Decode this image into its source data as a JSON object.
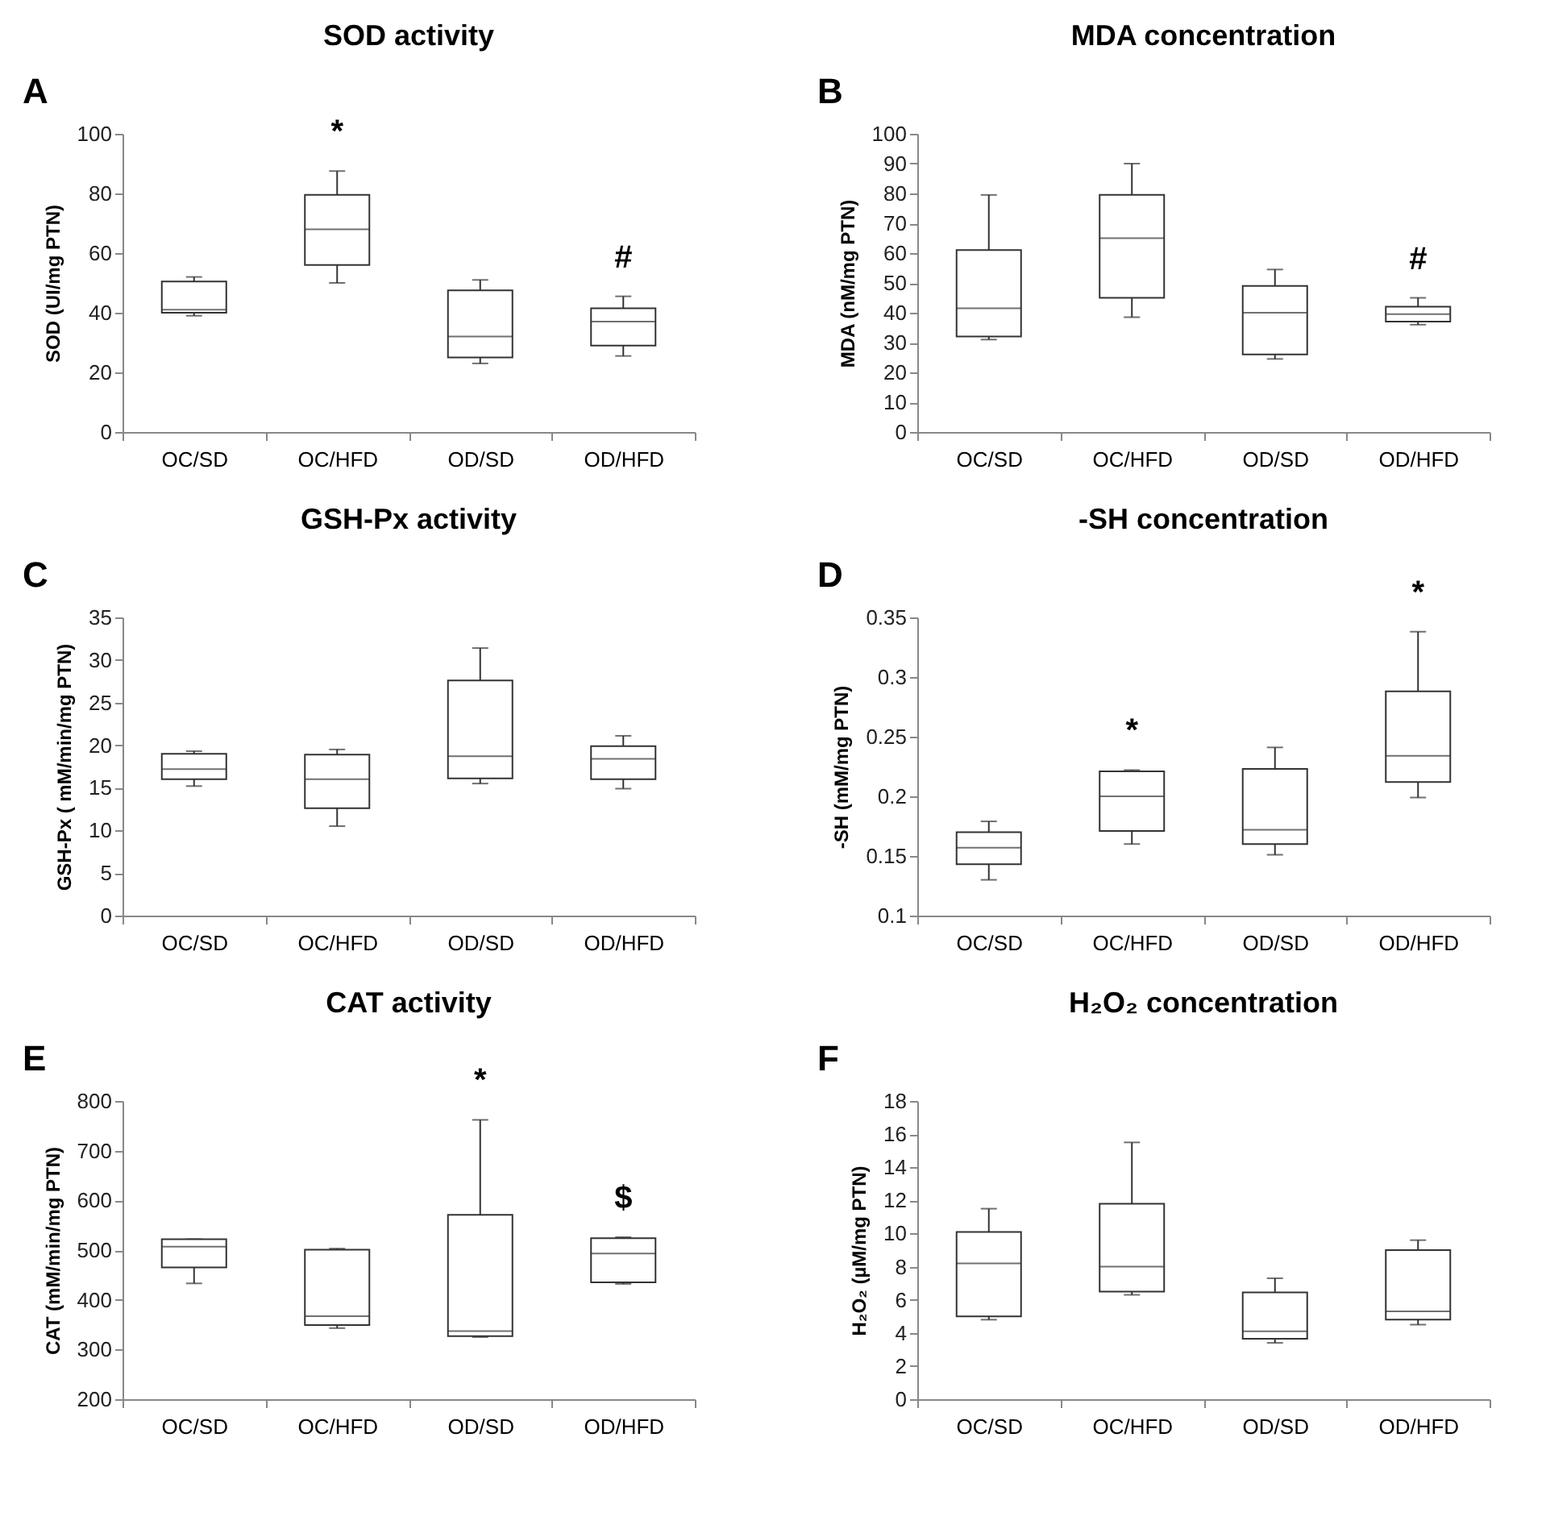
{
  "chart_data": [
    {
      "type": "box",
      "title": "SOD activity",
      "ylabel": "SOD (UI/mg PTN)",
      "categories": [
        "OC/SD",
        "OC/HFD",
        "OD/SD",
        "OD/HFD"
      ],
      "ylim": [
        0,
        100
      ],
      "yticks": [
        0,
        20,
        40,
        60,
        80,
        100
      ],
      "boxes": [
        {
          "low": 39,
          "q1": 40,
          "median": 41,
          "q3": 50.5,
          "high": 52
        },
        {
          "low": 50,
          "q1": 56,
          "median": 68,
          "q3": 79.5,
          "high": 87.5
        },
        {
          "low": 23,
          "q1": 25,
          "median": 32,
          "q3": 47.5,
          "high": 51
        },
        {
          "low": 25.5,
          "q1": 29,
          "median": 37,
          "q3": 41.5,
          "high": 45.5
        }
      ],
      "annotations": [
        "A",
        {
          "text": "*",
          "x": "OC/HFD",
          "y": 87.5
        },
        {
          "text": "#",
          "x": "OD/HFD",
          "y": 45.5
        }
      ]
    },
    {
      "type": "box",
      "title": "MDA concentration",
      "ylabel": "MDA (nM/mg PTN)",
      "categories": [
        "OC/SD",
        "OC/HFD",
        "OD/SD",
        "OD/HFD"
      ],
      "ylim": [
        0,
        100
      ],
      "yticks": [
        0,
        10,
        20,
        30,
        40,
        50,
        60,
        70,
        80,
        90,
        100
      ],
      "boxes": [
        {
          "low": 31,
          "q1": 32,
          "median": 41.5,
          "q3": 61,
          "high": 79.5
        },
        {
          "low": 38.5,
          "q1": 45,
          "median": 65,
          "q3": 79.5,
          "high": 90
        },
        {
          "low": 24.5,
          "q1": 26,
          "median": 40,
          "q3": 49,
          "high": 54.5
        },
        {
          "low": 36,
          "q1": 37,
          "median": 39.5,
          "q3": 42,
          "high": 45
        }
      ],
      "annotations": [
        "B",
        {
          "text": "#",
          "x": "OD/HFD",
          "y": 45
        }
      ]
    },
    {
      "type": "box",
      "title": "GSH-Px activity",
      "ylabel": "GSH-Px ( mM/min/mg PTN)",
      "categories": [
        "OC/SD",
        "OC/HFD",
        "OD/SD",
        "OD/HFD"
      ],
      "ylim": [
        0,
        35
      ],
      "yticks": [
        0,
        5,
        10,
        15,
        20,
        25,
        30,
        35
      ],
      "boxes": [
        {
          "low": 15.2,
          "q1": 16,
          "median": 17.2,
          "q3": 19,
          "high": 19.3
        },
        {
          "low": 10.5,
          "q1": 12.6,
          "median": 16,
          "q3": 18.9,
          "high": 19.5
        },
        {
          "low": 15.5,
          "q1": 16.1,
          "median": 18.7,
          "q3": 27.6,
          "high": 31.4
        },
        {
          "low": 14.9,
          "q1": 16,
          "median": 18.4,
          "q3": 19.9,
          "high": 21.1
        }
      ],
      "annotations": [
        "C"
      ]
    },
    {
      "type": "box",
      "title": "-SH concentration",
      "ylabel": "-SH (mM/mg PTN)",
      "categories": [
        "OC/SD",
        "OC/HFD",
        "OD/SD",
        "OD/HFD"
      ],
      "ylim": [
        0.1,
        0.35
      ],
      "yticks": [
        0.1,
        0.15,
        0.2,
        0.25,
        0.3,
        0.35
      ],
      "boxes": [
        {
          "low": 0.13,
          "q1": 0.143,
          "median": 0.157,
          "q3": 0.17,
          "high": 0.179
        },
        {
          "low": 0.16,
          "q1": 0.171,
          "median": 0.2,
          "q3": 0.221,
          "high": 0.222
        },
        {
          "low": 0.151,
          "q1": 0.16,
          "median": 0.172,
          "q3": 0.223,
          "high": 0.241
        },
        {
          "low": 0.199,
          "q1": 0.212,
          "median": 0.234,
          "q3": 0.288,
          "high": 0.338
        }
      ],
      "annotations": [
        "D",
        {
          "text": "*",
          "x": "OC/HFD",
          "y": 0.222
        },
        {
          "text": "*",
          "x": "OD/HFD",
          "y": 0.338
        }
      ]
    },
    {
      "type": "box",
      "title": "CAT activity",
      "ylabel": "CAT (mM/min/mg  PTN)",
      "categories": [
        "OC/SD",
        "OC/HFD",
        "OD/SD",
        "OD/HFD"
      ],
      "ylim": [
        200,
        800
      ],
      "yticks": [
        200,
        300,
        400,
        500,
        600,
        700,
        800
      ],
      "boxes": [
        {
          "low": 433,
          "q1": 465,
          "median": 507,
          "q3": 522,
          "high": 522
        },
        {
          "low": 343,
          "q1": 349,
          "median": 367,
          "q3": 501,
          "high": 503
        },
        {
          "low": 325,
          "q1": 327,
          "median": 337,
          "q3": 571,
          "high": 762
        },
        {
          "low": 432,
          "q1": 435,
          "median": 493,
          "q3": 524,
          "high": 526
        }
      ],
      "annotations": [
        "E",
        {
          "text": "*",
          "x": "OD/SD",
          "y": 762
        },
        {
          "text": "$",
          "x": "OD/HFD",
          "y": 526
        }
      ]
    },
    {
      "type": "box",
      "title": "H₂O₂ concentration",
      "ylabel": "H₂O₂ (µM/mg PTN)",
      "categories": [
        "OC/SD",
        "OC/HFD",
        "OD/SD",
        "OD/HFD"
      ],
      "ylim": [
        0,
        18
      ],
      "yticks": [
        0,
        2,
        4,
        6,
        8,
        10,
        12,
        14,
        16,
        18
      ],
      "boxes": [
        {
          "low": 4.8,
          "q1": 5,
          "median": 8.2,
          "q3": 10.1,
          "high": 11.5
        },
        {
          "low": 6.3,
          "q1": 6.5,
          "median": 8,
          "q3": 11.8,
          "high": 15.5
        },
        {
          "low": 3.4,
          "q1": 3.65,
          "median": 4.1,
          "q3": 6.45,
          "high": 7.3
        },
        {
          "low": 4.5,
          "q1": 4.8,
          "median": 5.3,
          "q3": 9,
          "high": 9.6
        }
      ],
      "annotations": [
        "F"
      ]
    }
  ]
}
